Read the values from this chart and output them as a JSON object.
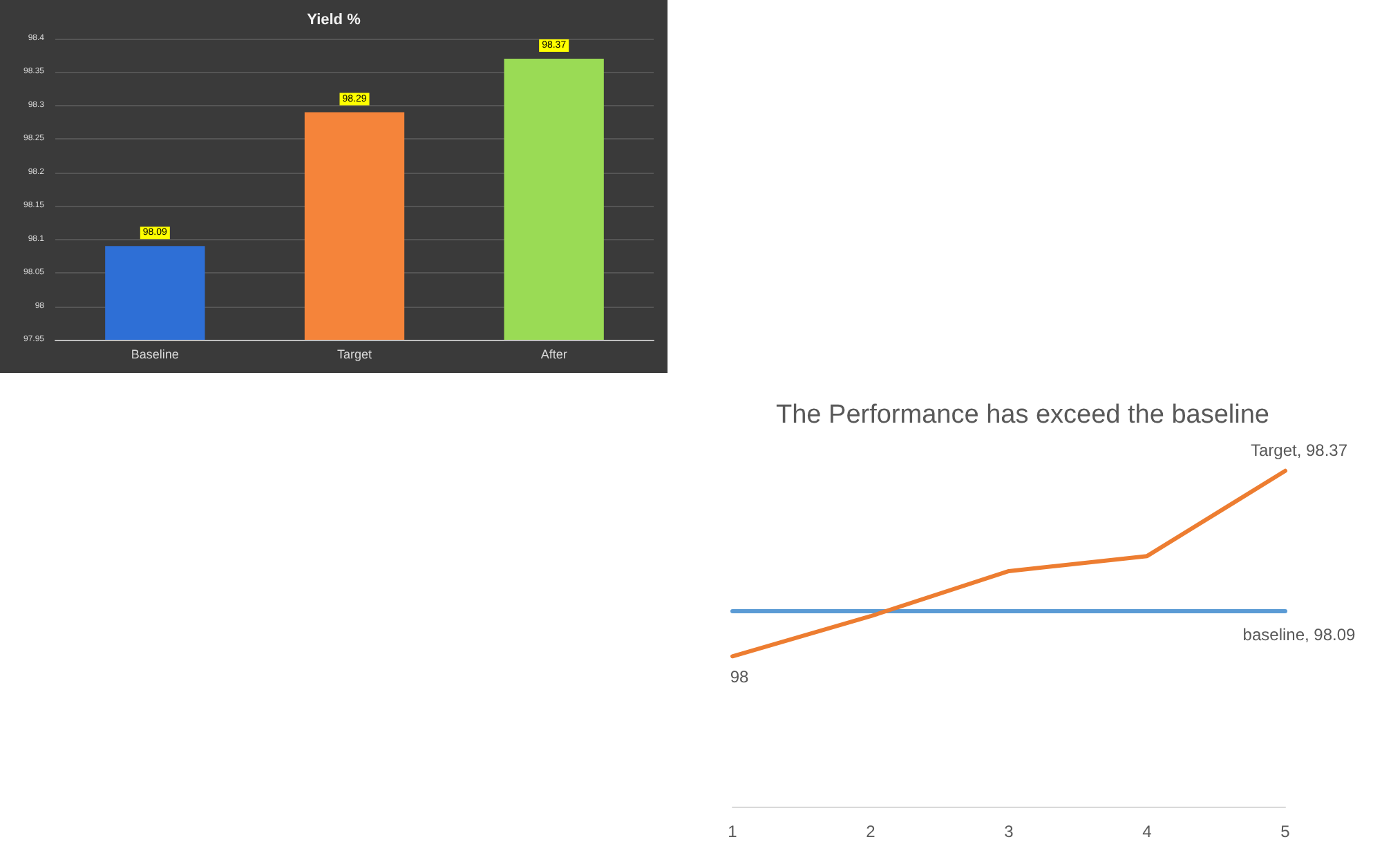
{
  "chart_data": [
    {
      "type": "bar",
      "title": "Yield %",
      "categories": [
        "Baseline",
        "Target",
        "After"
      ],
      "values": [
        98.09,
        98.29,
        98.37
      ],
      "colors": [
        "#2e6fd6",
        "#f5843a",
        "#9adb55"
      ],
      "ylim": [
        97.95,
        98.4
      ],
      "yticks": [
        97.95,
        98,
        98.05,
        98.1,
        98.15,
        98.2,
        98.25,
        98.3,
        98.35,
        98.4
      ],
      "grid": "y",
      "data_labels": true
    },
    {
      "type": "line",
      "title": "The Performance has exceed the baseline",
      "categories": [
        "1",
        "2",
        "3",
        "4",
        "5"
      ],
      "tick_labels": "x",
      "marker": "none",
      "series": [
        {
          "color": "#5b9bd5",
          "values": [
            98.09,
            98.09,
            98.09,
            98.09,
            98.09
          ],
          "value_labels": [
            null,
            null,
            null,
            null,
            "baseline, 98.09"
          ]
        },
        {
          "color": "#ed7d31",
          "values": [
            98,
            98.08,
            98.17,
            98.2,
            98.37
          ],
          "value_labels": [
            "98",
            null,
            null,
            null,
            "Target, 98.37"
          ]
        }
      ]
    }
  ]
}
